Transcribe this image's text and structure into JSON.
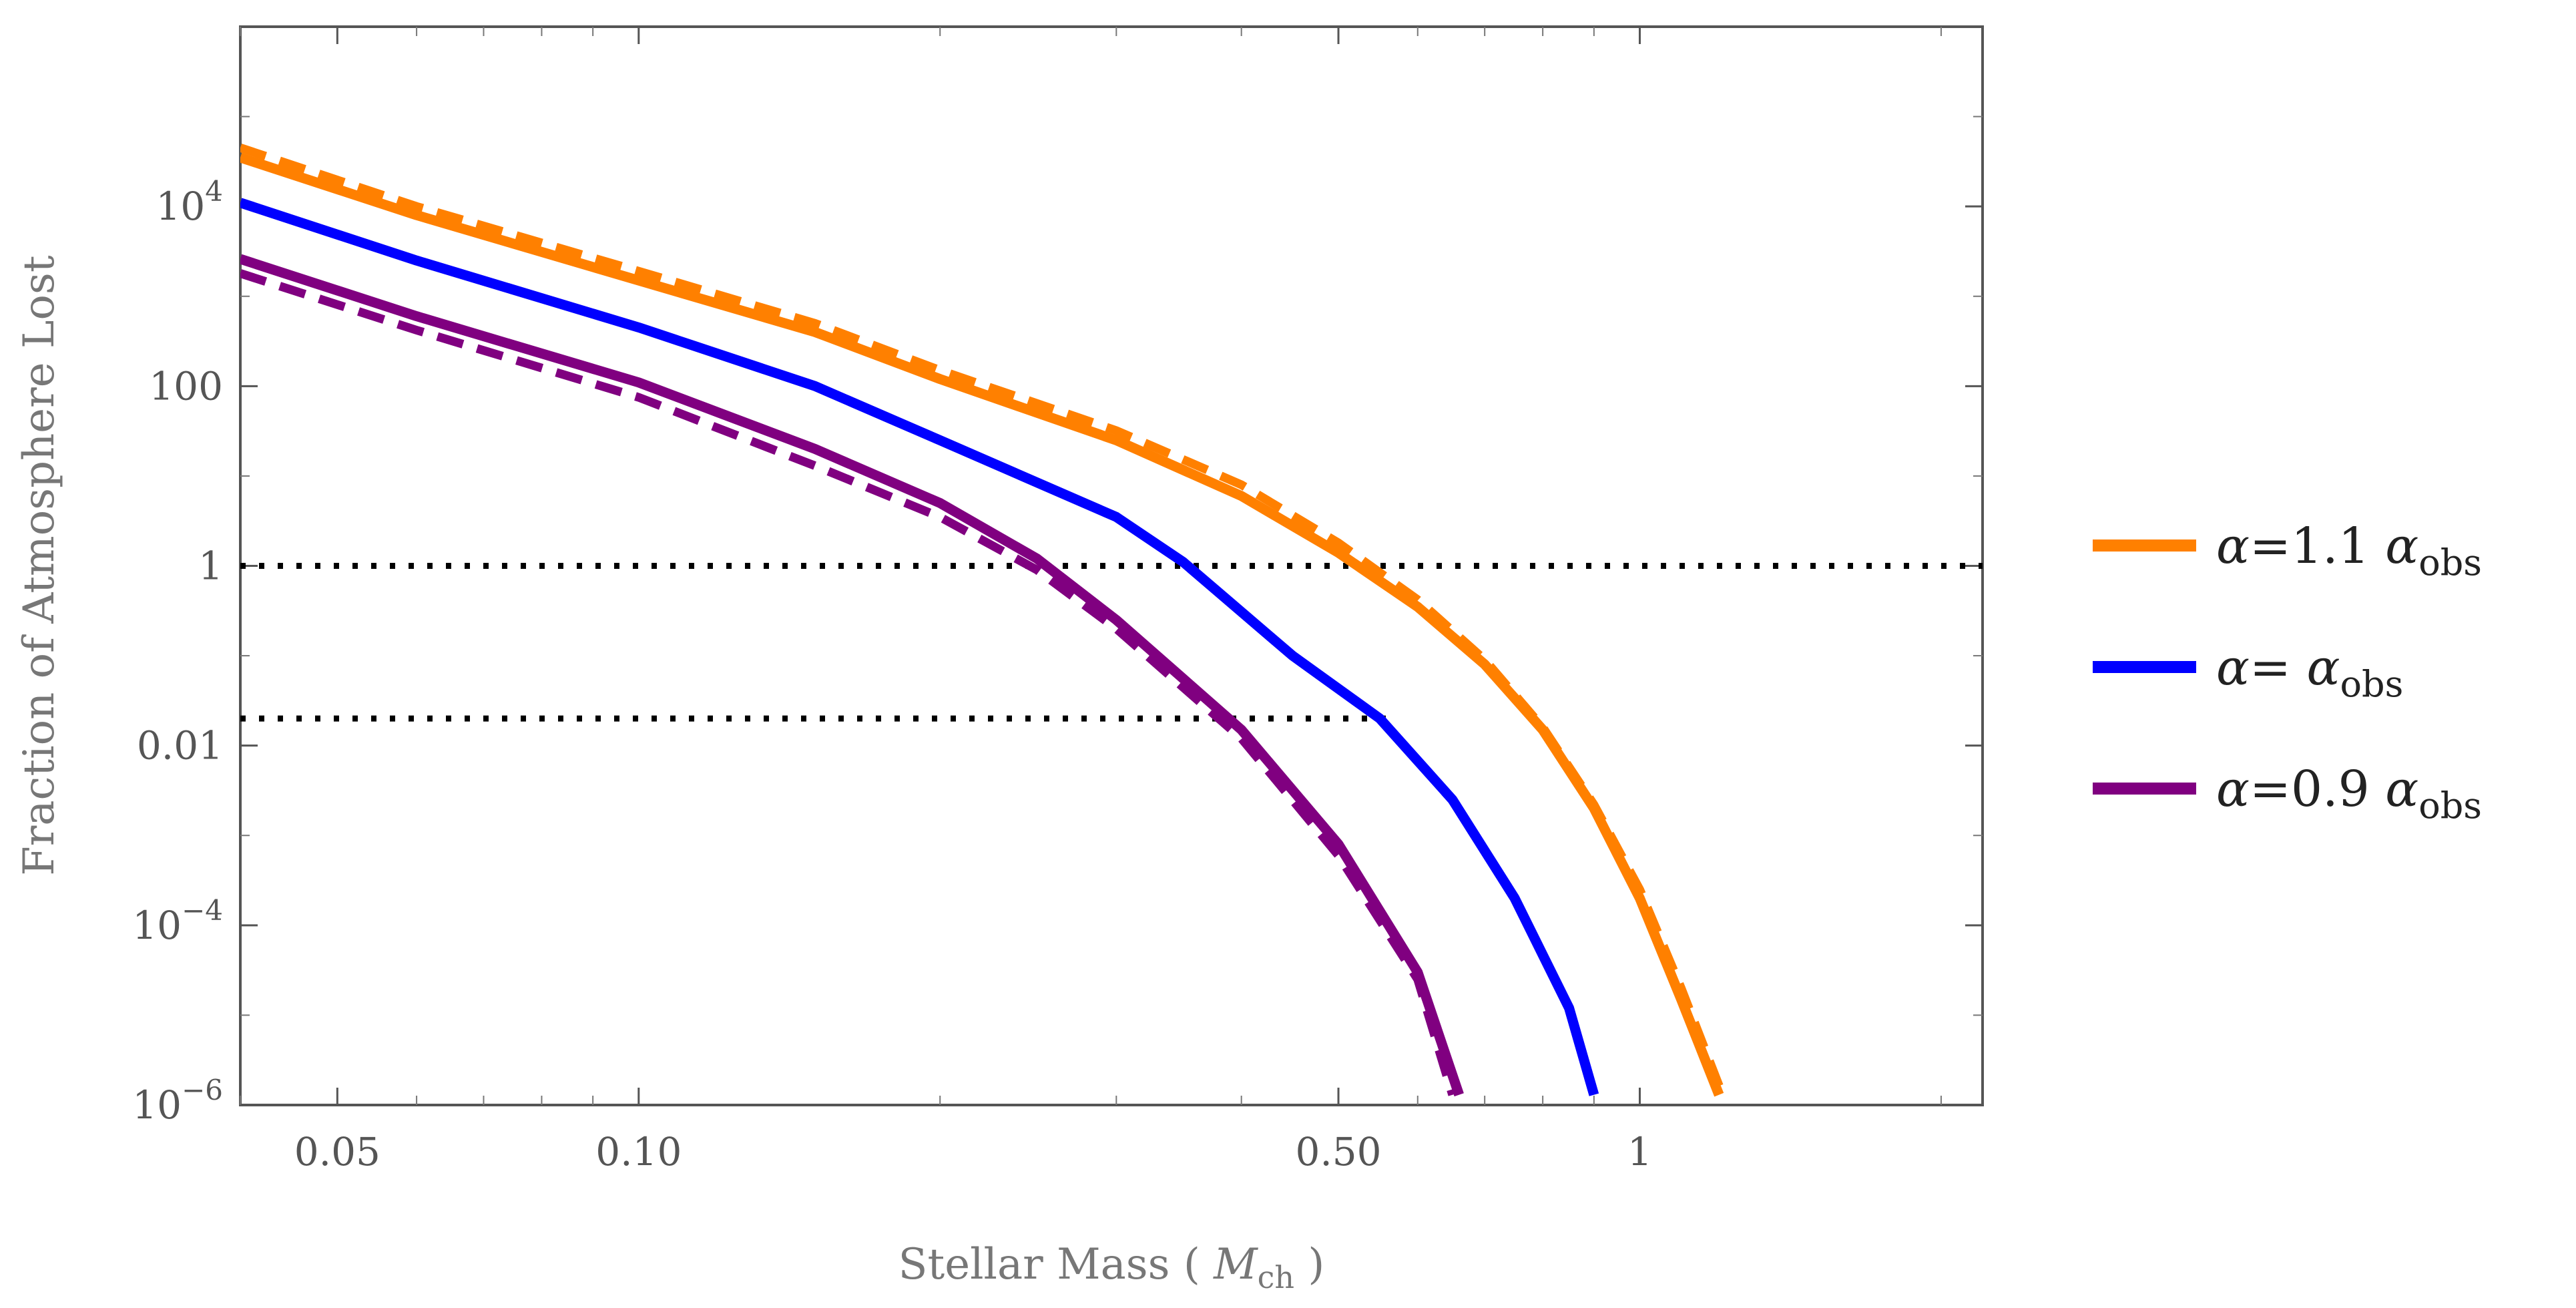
{
  "chart_data": {
    "type": "line",
    "xlabel": "Stellar Mass",
    "xlabel_unit": "M",
    "xlabel_unit_sub": "ch",
    "ylabel": "Fraction of Atmosphere Lost",
    "x_scale": "log",
    "y_scale": "log",
    "xlim": [
      0.04,
      2.2
    ],
    "ylim": [
      1e-06,
      1000000
    ],
    "x_ticks": [
      {
        "value": 0.05,
        "label": "0.05"
      },
      {
        "value": 0.1,
        "label": "0.10"
      },
      {
        "value": 0.5,
        "label": "0.50"
      },
      {
        "value": 1,
        "label": "1"
      }
    ],
    "y_ticks": [
      {
        "value": 10000,
        "base": "10",
        "exp": "4"
      },
      {
        "value": 100,
        "label": "100"
      },
      {
        "value": 1,
        "label": "1"
      },
      {
        "value": 0.01,
        "label": "0.01"
      },
      {
        "value": 0.0001,
        "base": "10",
        "exp": "−4"
      },
      {
        "value": 1e-06,
        "base": "10",
        "exp": "−6"
      }
    ],
    "reference_lines": [
      {
        "y": 1,
        "x_range": [
          0.04,
          2.2
        ],
        "style": "dotted",
        "color": "#000000"
      },
      {
        "y": 0.02,
        "x_range": [
          0.04,
          0.56
        ],
        "style": "dotted",
        "color": "#000000"
      }
    ],
    "legend_position": "right",
    "series": [
      {
        "legend_prefix": "α=1.1 ",
        "legend_alpha": "α",
        "legend_sub": "obs",
        "color": "#ff8000",
        "solid": [
          [
            0.04,
            35000
          ],
          [
            0.06,
            8000
          ],
          [
            0.1,
            1500
          ],
          [
            0.15,
            400
          ],
          [
            0.2,
            120
          ],
          [
            0.3,
            25
          ],
          [
            0.4,
            6
          ],
          [
            0.5,
            1.4
          ],
          [
            0.6,
            0.35
          ],
          [
            0.7,
            0.08
          ],
          [
            0.8,
            0.015
          ],
          [
            0.9,
            0.002
          ],
          [
            1.0,
            0.0002
          ],
          [
            1.1,
            1.5e-05
          ],
          [
            1.2,
            1.3e-06
          ]
        ],
        "dashed": [
          [
            0.04,
            45000
          ],
          [
            0.06,
            10000
          ],
          [
            0.1,
            1900
          ],
          [
            0.15,
            500
          ],
          [
            0.2,
            150
          ],
          [
            0.3,
            32
          ],
          [
            0.4,
            8
          ],
          [
            0.5,
            1.8
          ],
          [
            0.6,
            0.42
          ],
          [
            0.7,
            0.09
          ],
          [
            0.8,
            0.016
          ],
          [
            0.9,
            0.0022
          ],
          [
            1.0,
            0.00025
          ],
          [
            1.1,
            2e-05
          ],
          [
            1.21,
            1.3e-06
          ]
        ]
      },
      {
        "legend_prefix": "α= ",
        "legend_alpha": "α",
        "legend_sub": "obs",
        "color": "#0000ff",
        "solid": [
          [
            0.04,
            11000
          ],
          [
            0.06,
            2500
          ],
          [
            0.1,
            450
          ],
          [
            0.15,
            100
          ],
          [
            0.2,
            25
          ],
          [
            0.3,
            3.5
          ],
          [
            0.35,
            1.1
          ],
          [
            0.45,
            0.1
          ],
          [
            0.55,
            0.02
          ],
          [
            0.65,
            0.0025
          ],
          [
            0.75,
            0.0002
          ],
          [
            0.85,
            1.2e-05
          ],
          [
            0.9,
            1.3e-06
          ]
        ],
        "dashed": []
      },
      {
        "legend_prefix": "α=0.9 ",
        "legend_alpha": "α",
        "legend_sub": "obs",
        "color": "#800080",
        "solid": [
          [
            0.04,
            2600
          ],
          [
            0.06,
            600
          ],
          [
            0.1,
            110
          ],
          [
            0.15,
            20
          ],
          [
            0.2,
            5
          ],
          [
            0.25,
            1.2
          ],
          [
            0.3,
            0.25
          ],
          [
            0.4,
            0.015
          ],
          [
            0.5,
            0.0008
          ],
          [
            0.6,
            3e-05
          ],
          [
            0.66,
            1.3e-06
          ]
        ],
        "dashed": [
          [
            0.04,
            1800
          ],
          [
            0.06,
            420
          ],
          [
            0.1,
            75
          ],
          [
            0.15,
            13
          ],
          [
            0.2,
            3.5
          ],
          [
            0.25,
            0.9
          ],
          [
            0.3,
            0.2
          ],
          [
            0.4,
            0.012
          ],
          [
            0.5,
            0.0006
          ],
          [
            0.6,
            2.5e-05
          ],
          [
            0.65,
            1.3e-06
          ]
        ]
      }
    ]
  }
}
